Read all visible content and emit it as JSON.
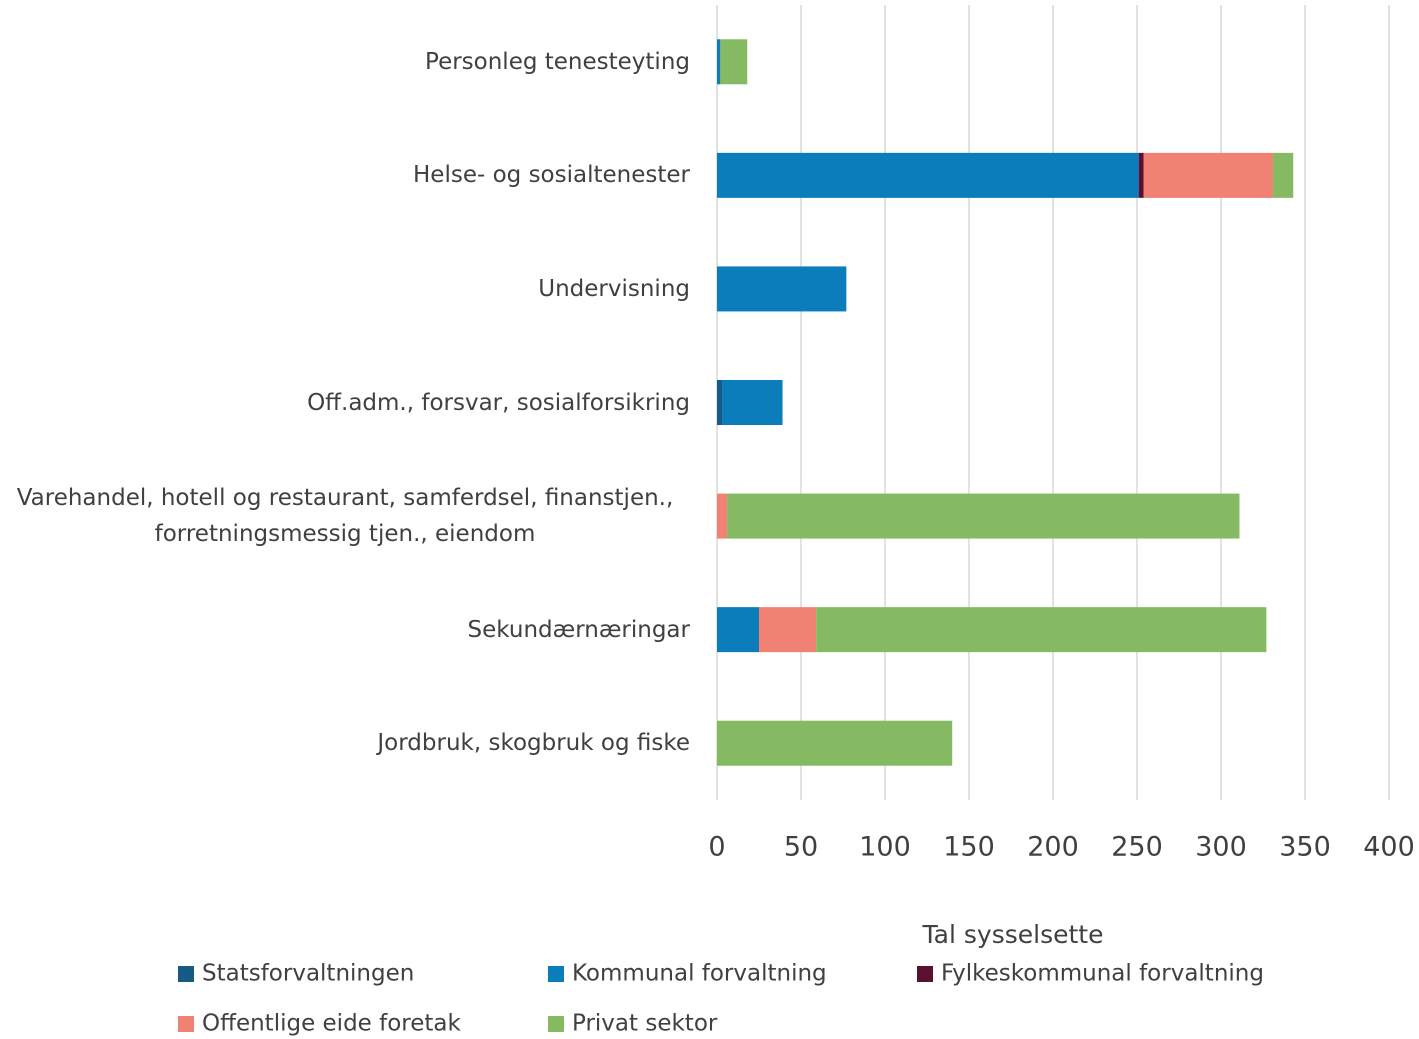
{
  "chart_data": {
    "type": "stacked_bar_horizontal",
    "categories": [
      "Personleg tenesteyting",
      "Helse- og sosialtenester",
      "Undervisning",
      "Off.adm., forsvar, sosialforsikring",
      "Varehandel, hotell og restaurant, samferdsel, finanstjen., forretningsmessig tjen., eiendom",
      "Sekundærnæringar",
      "Jordbruk, skogbruk og fiske"
    ],
    "series": [
      {
        "name": "Statsforvaltningen",
        "color": "#175a87",
        "values": [
          0,
          0,
          0,
          3,
          0,
          0,
          0
        ]
      },
      {
        "name": "Kommunal forvaltning",
        "color": "#0a7dba",
        "values": [
          2,
          251,
          77,
          36,
          0,
          25,
          0
        ]
      },
      {
        "name": "Fylkeskommunal forvaltning",
        "color": "#5a1030",
        "values": [
          0,
          3,
          0,
          0,
          0,
          0,
          0
        ]
      },
      {
        "name": "Offentlige eide foretak",
        "color": "#f08173",
        "values": [
          0,
          77,
          0,
          0,
          6,
          34,
          0
        ]
      },
      {
        "name": "Privat sektor",
        "color": "#86ba62",
        "values": [
          16,
          12,
          0,
          0,
          305,
          268,
          140
        ]
      }
    ],
    "xlabel": "Tal sysselsette",
    "xlim": [
      0,
      400
    ],
    "xticks": [
      0,
      50,
      100,
      150,
      200,
      250,
      300,
      350,
      400
    ],
    "grid": true
  }
}
